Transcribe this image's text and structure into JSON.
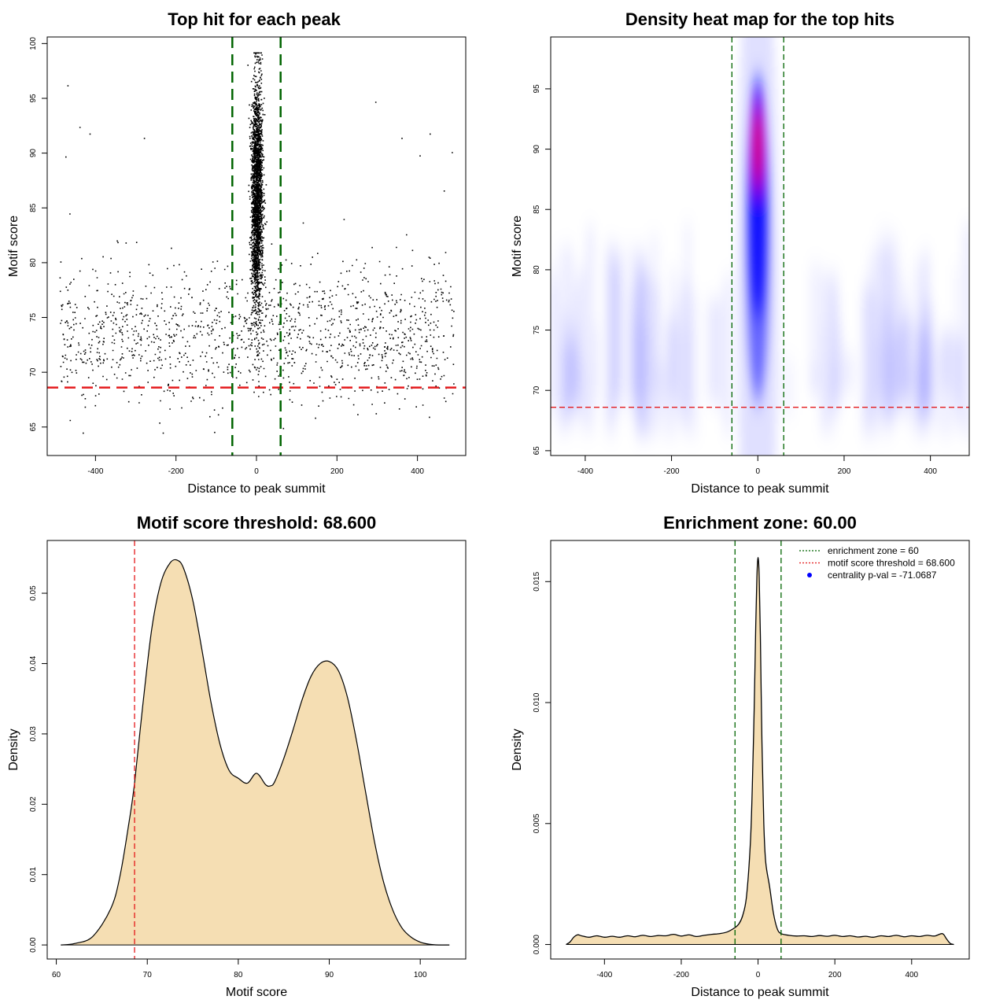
{
  "colors": {
    "threshold_red": "#e41a1c",
    "zone_green": "#006400",
    "fill_wheat": "#f5deb3",
    "heat_blue": "#0000ff",
    "heat_red": "#ff0000",
    "point_black": "#000000"
  },
  "chart_data": [
    {
      "type": "scatter",
      "title": "Top hit for each peak",
      "xlabel": "Distance to peak summit",
      "ylabel": "Motif score",
      "xlim": [
        -520,
        520
      ],
      "ylim": [
        62.4,
        100.6
      ],
      "xticks": [
        -400,
        -200,
        0,
        200,
        400
      ],
      "yticks": [
        65,
        70,
        75,
        80,
        85,
        90,
        95,
        100
      ],
      "xtick_labels": [
        "-400",
        "-200",
        "0",
        "200",
        "400"
      ],
      "ytick_labels": [
        "65",
        "70",
        "75",
        "80",
        "85",
        "90",
        "95",
        "100"
      ],
      "threshold": 68.6,
      "zone": [
        -60,
        60
      ],
      "background_points": {
        "n": 1400,
        "x_range": [
          -490,
          490
        ],
        "y_mean": 73.5,
        "y_sd": 3.2,
        "y_min": 64.5,
        "y_max": 84
      },
      "central_points": {
        "n": 2600,
        "x_sd": 7,
        "y_mean": 86,
        "y_sd": 5.2,
        "y_min": 66,
        "y_max": 99.2
      },
      "outliers": [
        {
          "x": -470,
          "y": 96.2
        },
        {
          "x": -440,
          "y": 92.4
        },
        {
          "x": -415,
          "y": 91.8
        },
        {
          "x": -475,
          "y": 89.7
        },
        {
          "x": -465,
          "y": 84.5
        },
        {
          "x": 295,
          "y": 94.7
        },
        {
          "x": 430,
          "y": 91.8
        },
        {
          "x": 360,
          "y": 91.4
        },
        {
          "x": 405,
          "y": 89.8
        },
        {
          "x": 485,
          "y": 90.1
        },
        {
          "x": -280,
          "y": 91.4
        },
        {
          "x": 465,
          "y": 86.6
        }
      ]
    },
    {
      "type": "heatmap",
      "title": "Density heat map for the top hits",
      "xlabel": "Distance to peak summit",
      "ylabel": "Motif score",
      "xlim": [
        -480,
        490
      ],
      "ylim": [
        64.6,
        99.3
      ],
      "xticks": [
        -400,
        -200,
        0,
        200,
        400
      ],
      "yticks": [
        65,
        70,
        75,
        80,
        85,
        90,
        95
      ],
      "xtick_labels": [
        "-400",
        "-200",
        "0",
        "200",
        "400"
      ],
      "ytick_labels": [
        "65",
        "70",
        "75",
        "80",
        "85",
        "90",
        "95"
      ],
      "threshold": 68.6,
      "zone": [
        -60,
        60
      ],
      "hotspot": {
        "x": 0,
        "y": 90,
        "x_sd": 6,
        "y_sd": 5
      }
    },
    {
      "type": "area",
      "title": "Motif score threshold: 68.600",
      "xlabel": "Motif score",
      "ylabel": "Density",
      "xlim": [
        59,
        105
      ],
      "ylim": [
        -0.002,
        0.0575
      ],
      "xticks": [
        60,
        70,
        80,
        90,
        100
      ],
      "yticks": [
        0.0,
        0.01,
        0.02,
        0.03,
        0.04,
        0.05
      ],
      "xtick_labels": [
        "60",
        "70",
        "80",
        "90",
        "100"
      ],
      "ytick_labels": [
        "0.00",
        "0.01",
        "0.02",
        "0.03",
        "0.04",
        "0.05"
      ],
      "threshold": 68.6,
      "x": [
        60.5,
        62,
        64,
        66,
        67,
        68,
        68.6,
        69.5,
        70.5,
        71.5,
        72.5,
        73.3,
        74,
        75,
        76,
        77,
        78,
        79,
        80,
        81,
        82,
        83,
        83.5,
        84,
        85,
        86,
        87,
        88,
        89,
        90,
        91,
        92,
        93,
        94,
        95,
        96,
        97,
        98,
        99,
        100,
        101,
        102,
        103.2
      ],
      "y": [
        0.0,
        0.0002,
        0.0012,
        0.0052,
        0.0098,
        0.0175,
        0.023,
        0.034,
        0.045,
        0.0515,
        0.0543,
        0.0547,
        0.0535,
        0.049,
        0.042,
        0.0345,
        0.0285,
        0.0248,
        0.0237,
        0.023,
        0.0244,
        0.0228,
        0.0226,
        0.0232,
        0.0265,
        0.0305,
        0.0348,
        0.0382,
        0.04,
        0.0403,
        0.039,
        0.0352,
        0.029,
        0.0217,
        0.0145,
        0.0088,
        0.0049,
        0.0024,
        0.0011,
        0.0004,
        0.0001,
        0.0,
        0.0
      ]
    },
    {
      "type": "area",
      "title": "Enrichment zone: 60.00",
      "xlabel": "Distance to peak summit",
      "ylabel": "Density",
      "xlim": [
        -540,
        550
      ],
      "ylim": [
        -0.0006,
        0.0167
      ],
      "xticks": [
        -400,
        -200,
        0,
        200,
        400
      ],
      "yticks": [
        0.0,
        0.005,
        0.01,
        0.015
      ],
      "xtick_labels": [
        "-400",
        "-200",
        "0",
        "200",
        "400"
      ],
      "ytick_labels": [
        "0.000",
        "0.005",
        "0.010",
        "0.015"
      ],
      "zone": [
        -60,
        60
      ],
      "x": [
        -500,
        -490,
        -480,
        -470,
        -460,
        -440,
        -420,
        -400,
        -380,
        -360,
        -340,
        -320,
        -300,
        -280,
        -260,
        -240,
        -220,
        -200,
        -180,
        -160,
        -140,
        -120,
        -100,
        -80,
        -60,
        -50,
        -40,
        -30,
        -20,
        -15,
        -10,
        -6,
        -3,
        0,
        3,
        6,
        10,
        15,
        20,
        30,
        40,
        50,
        60,
        80,
        100,
        120,
        140,
        160,
        180,
        200,
        220,
        240,
        260,
        280,
        300,
        320,
        340,
        360,
        380,
        400,
        420,
        440,
        460,
        480,
        490,
        500,
        510
      ],
      "y": [
        0.0,
        0.0001,
        0.0003,
        0.0004,
        0.00036,
        0.0003,
        0.00036,
        0.0003,
        0.00034,
        0.0003,
        0.00036,
        0.00032,
        0.00038,
        0.00033,
        0.00037,
        0.00036,
        0.00042,
        0.00035,
        0.0004,
        0.00033,
        0.00038,
        0.00042,
        0.00045,
        0.00052,
        0.0007,
        0.00085,
        0.0012,
        0.002,
        0.0042,
        0.0065,
        0.0098,
        0.0132,
        0.0152,
        0.016,
        0.0152,
        0.0128,
        0.0085,
        0.005,
        0.0034,
        0.0024,
        0.0013,
        0.00065,
        0.00045,
        0.00038,
        0.00035,
        0.00036,
        0.00033,
        0.00037,
        0.00034,
        0.00038,
        0.00033,
        0.00036,
        0.00031,
        0.00034,
        0.0003,
        0.00036,
        0.00033,
        0.00038,
        0.00032,
        0.00036,
        0.00033,
        0.00038,
        0.00035,
        0.00045,
        0.00025,
        5e-05,
        0.0
      ],
      "legend": {
        "position": "top-right",
        "entries": [
          {
            "label": "enrichment zone = 60",
            "symbol": "dotted-line",
            "color": "#006400"
          },
          {
            "label": "motif score threshold = 68.600",
            "symbol": "dotted-line",
            "color": "#e41a1c"
          },
          {
            "label": "centrality p-val = -71.0687",
            "symbol": "dot",
            "color": "#0000ff"
          }
        ]
      }
    }
  ]
}
